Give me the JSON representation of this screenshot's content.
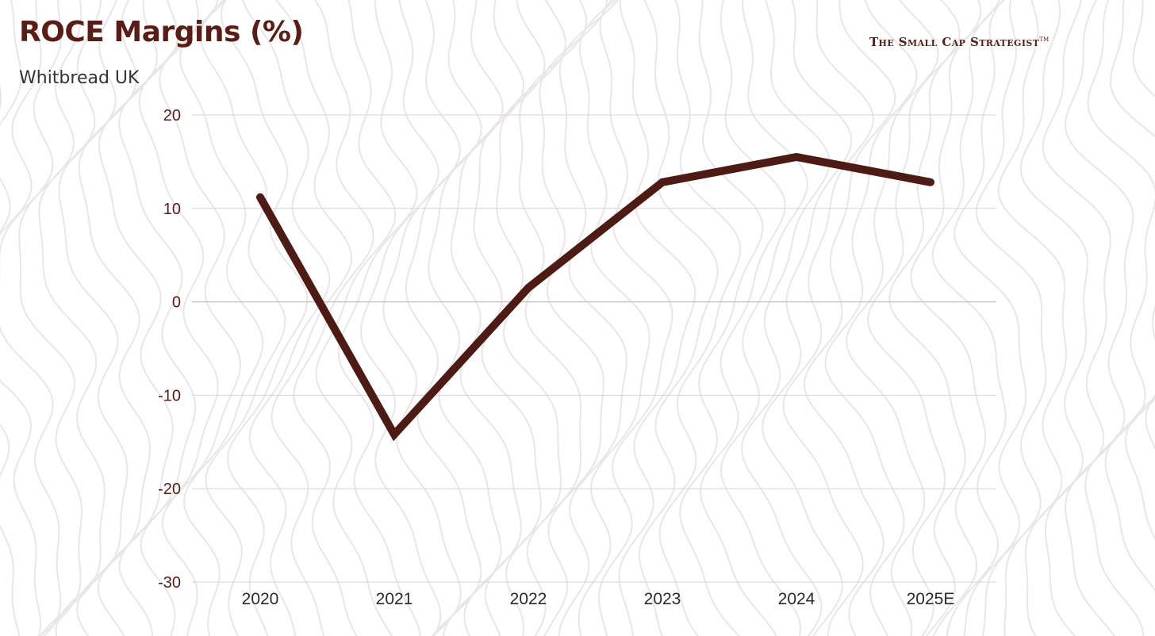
{
  "header": {
    "title": "ROCE Margins (%)",
    "subtitle": "Whitbread UK",
    "brand": "The Small Cap Strategist",
    "brand_mark": "TM"
  },
  "colors": {
    "line": "#4d1b14",
    "title": "#5a1c14",
    "tick_text": "#5a1c14",
    "gridline": "#d9d4d2",
    "zero_line": "#cfc6c3",
    "background_pattern": "#e9e6e5"
  },
  "chart_data": {
    "type": "line",
    "title": "ROCE Margins (%)",
    "subtitle": "Whitbread UK",
    "xlabel": "",
    "ylabel": "",
    "categories": [
      "2020",
      "2021",
      "2022",
      "2023",
      "2024",
      "2025E"
    ],
    "series": [
      {
        "values": [
          11.2,
          -14.2,
          1.5,
          12.8,
          15.5,
          12.8
        ]
      }
    ],
    "ylim": [
      -30,
      20
    ],
    "yticks": [
      "20",
      "10",
      "0",
      "-10",
      "-20",
      "-30"
    ],
    "grid": true,
    "legend": "none"
  }
}
